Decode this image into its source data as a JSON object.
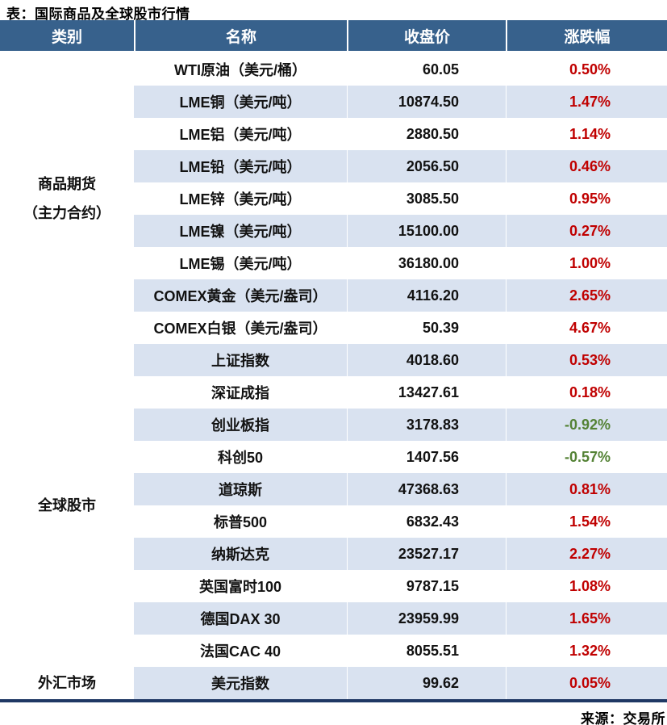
{
  "colors": {
    "header_bg": "#37618C",
    "stripe_blue": "#D9E2F0",
    "up_red": "#C00000",
    "down_green": "#548235",
    "section_divider": "#A7B9CA",
    "bottom_border_navy": "#1F3864"
  },
  "chart_data": {
    "type": "table",
    "title": "表：国际商品及全球股市行情",
    "source": "来源：交易所",
    "columns": [
      "类别",
      "名称",
      "收盘价",
      "涨跌幅"
    ],
    "sections": [
      {
        "category_lines": [
          "商品期货",
          "（主力合约）"
        ],
        "rows": [
          {
            "name": "WTI原油（美元/桶）",
            "close": "60.05",
            "change": "0.50%",
            "dir": "up"
          },
          {
            "name": "LME铜（美元/吨）",
            "close": "10874.50",
            "change": "1.47%",
            "dir": "up"
          },
          {
            "name": "LME铝（美元/吨）",
            "close": "2880.50",
            "change": "1.14%",
            "dir": "up"
          },
          {
            "name": "LME铅（美元/吨）",
            "close": "2056.50",
            "change": "0.46%",
            "dir": "up"
          },
          {
            "name": "LME锌（美元/吨）",
            "close": "3085.50",
            "change": "0.95%",
            "dir": "up"
          },
          {
            "name": "LME镍（美元/吨）",
            "close": "15100.00",
            "change": "0.27%",
            "dir": "up"
          },
          {
            "name": "LME锡（美元/吨）",
            "close": "36180.00",
            "change": "1.00%",
            "dir": "up"
          },
          {
            "name": "COMEX黄金（美元/盎司）",
            "close": "4116.20",
            "change": "2.65%",
            "dir": "up"
          },
          {
            "name": "COMEX白银（美元/盎司）",
            "close": "50.39",
            "change": "4.67%",
            "dir": "up"
          }
        ]
      },
      {
        "category_lines": [
          "全球股市"
        ],
        "rows": [
          {
            "name": "上证指数",
            "close": "4018.60",
            "change": "0.53%",
            "dir": "up"
          },
          {
            "name": "深证成指",
            "close": "13427.61",
            "change": "0.18%",
            "dir": "up"
          },
          {
            "name": "创业板指",
            "close": "3178.83",
            "change": "-0.92%",
            "dir": "down"
          },
          {
            "name": "科创50",
            "close": "1407.56",
            "change": "-0.57%",
            "dir": "down"
          },
          {
            "name": "道琼斯",
            "close": "47368.63",
            "change": "0.81%",
            "dir": "up"
          },
          {
            "name": "标普500",
            "close": "6832.43",
            "change": "1.54%",
            "dir": "up"
          },
          {
            "name": "纳斯达克",
            "close": "23527.17",
            "change": "2.27%",
            "dir": "up"
          },
          {
            "name": "英国富时100",
            "close": "9787.15",
            "change": "1.08%",
            "dir": "up"
          },
          {
            "name": "德国DAX 30",
            "close": "23959.99",
            "change": "1.65%",
            "dir": "up"
          },
          {
            "name": "法国CAC 40",
            "close": "8055.51",
            "change": "1.32%",
            "dir": "up"
          }
        ]
      },
      {
        "category_lines": [
          "外汇市场"
        ],
        "rows": [
          {
            "name": "美元指数",
            "close": "99.62",
            "change": "0.05%",
            "dir": "up"
          }
        ]
      }
    ]
  }
}
